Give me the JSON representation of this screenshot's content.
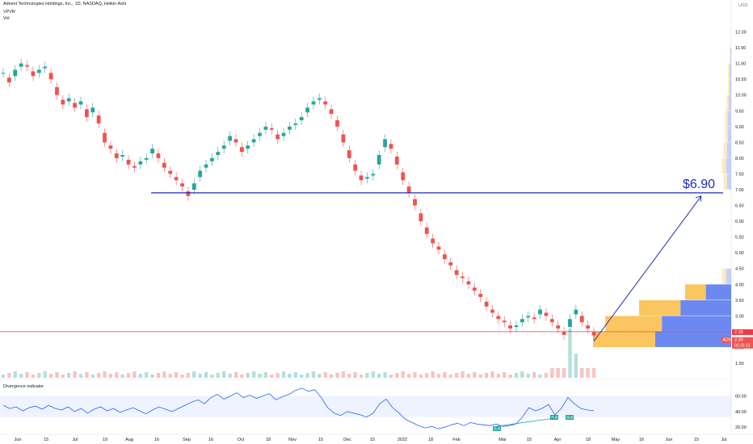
{
  "header": {
    "title": "Advent Technologies Holdings, Inc., 1D, NASDAQ, Heikin Ashi",
    "vpvr_label": "VPVR",
    "vol_label": "Vol",
    "currency": "USD"
  },
  "colors": {
    "up": "#26a69a",
    "down": "#ef5350",
    "hline": "#1e2bb8",
    "resistance": "#f23645",
    "vp_blue": "#5b7cf0",
    "vp_orange": "#fbc04f",
    "osc": "#2962ff"
  },
  "chart_data": [
    {
      "type": "candlestick",
      "name": "price",
      "x_ticks": [
        "Jun",
        "15",
        "Jul",
        "19",
        "Aug",
        "16",
        "Sep",
        "16",
        "Oct",
        "18",
        "Nov",
        "15",
        "Dec",
        "15",
        "2022",
        "18",
        "Feb",
        "Mar",
        "15",
        "Apr",
        "18",
        "May",
        "16",
        "Jun",
        "15",
        "Jul"
      ],
      "y_ticks": [
        "12.00",
        "11.50",
        "11.00",
        "10.50",
        "10.00",
        "9.50",
        "9.00",
        "8.50",
        "8.00",
        "7.50",
        "7.00",
        "6.50",
        "6.00",
        "5.50",
        "5.00",
        "4.50",
        "4.00",
        "3.50",
        "3.00",
        "2.50",
        "2.00",
        "1.50"
      ],
      "ylim": [
        1.5,
        12.5
      ],
      "annotations": [
        {
          "text": "$6.90",
          "value": 6.9
        },
        {
          "text": "ADN",
          "value": 2.3
        }
      ],
      "price_labels": [
        "2.38",
        "2.30",
        "00:25:13"
      ],
      "horizontal_lines": [
        6.9,
        2.5
      ],
      "ohlc_close": [
        10.7,
        10.4,
        10.8,
        11.0,
        10.9,
        10.6,
        10.8,
        10.9,
        10.5,
        10.0,
        9.7,
        9.9,
        9.6,
        9.8,
        9.3,
        9.6,
        9.1,
        8.5,
        8.3,
        8.0,
        8.1,
        7.8,
        7.7,
        7.9,
        8.0,
        8.3,
        8.0,
        7.7,
        7.5,
        7.3,
        7.1,
        6.8,
        7.2,
        7.6,
        7.8,
        8.0,
        8.2,
        8.4,
        8.7,
        8.5,
        8.2,
        8.4,
        8.6,
        8.8,
        9.0,
        8.9,
        8.6,
        8.8,
        9.0,
        9.1,
        9.3,
        9.6,
        9.8,
        9.9,
        9.7,
        9.4,
        9.0,
        8.5,
        8.0,
        7.6,
        7.3,
        7.4,
        7.5,
        8.1,
        8.6,
        8.3,
        7.8,
        7.3,
        6.9,
        6.5,
        6.0,
        5.6,
        5.3,
        5.1,
        4.8,
        4.6,
        4.3,
        4.2,
        4.0,
        3.8,
        3.6,
        3.3,
        3.1,
        2.9,
        2.8,
        2.6,
        2.7,
        2.9,
        3.0,
        2.9,
        3.2,
        3.0,
        2.8,
        2.6,
        2.4,
        2.9,
        3.2,
        2.8,
        2.6,
        2.38
      ],
      "volume_peak": 1.0
    },
    {
      "type": "line",
      "name": "Divergence indicator",
      "y_ticks": [
        "60.00",
        "40.00",
        "20.00"
      ],
      "ylim": [
        15,
        75
      ],
      "band": [
        33,
        60
      ],
      "signals": [
        "Bull",
        "Bull",
        "Bull"
      ],
      "values": [
        48,
        44,
        46,
        41,
        45,
        47,
        43,
        48,
        44,
        42,
        46,
        40,
        44,
        38,
        43,
        46,
        41,
        44,
        39,
        42,
        45,
        41,
        37,
        42,
        46,
        43,
        40,
        44,
        48,
        52,
        55,
        50,
        58,
        62,
        56,
        60,
        64,
        58,
        61,
        57,
        60,
        63,
        55,
        59,
        62,
        67,
        70,
        66,
        68,
        58,
        45,
        38,
        35,
        40,
        38,
        36,
        33,
        38,
        50,
        56,
        45,
        38,
        30,
        26,
        22,
        19,
        21,
        18,
        20,
        23,
        25,
        22,
        26,
        24,
        23,
        22,
        24,
        21,
        22,
        24,
        33,
        45,
        41,
        44,
        49,
        36,
        44,
        58,
        50,
        44,
        42,
        41
      ]
    }
  ]
}
